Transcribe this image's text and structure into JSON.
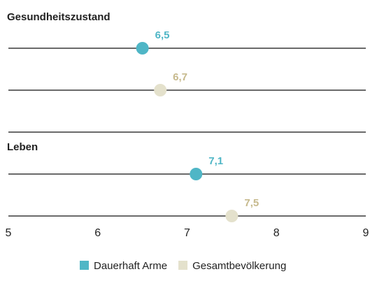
{
  "chart_data": {
    "type": "dot",
    "categories": [
      "Gesundheitszustand",
      "Leben"
    ],
    "series": [
      {
        "name": "Dauerhaft Arme",
        "color": "#4fb6c6",
        "label_color": "#4fb6c6",
        "values": [
          6.5,
          7.1
        ],
        "value_labels": [
          "6,5",
          "7,1"
        ]
      },
      {
        "name": "Gesamtbevölkerung",
        "color": "#e4e1cc",
        "label_color": "#c6b98c",
        "values": [
          6.7,
          7.5
        ],
        "value_labels": [
          "6,7",
          "7,5"
        ]
      }
    ],
    "xlim": [
      5,
      9
    ],
    "xticks": [
      5,
      6,
      7,
      8,
      9
    ]
  }
}
